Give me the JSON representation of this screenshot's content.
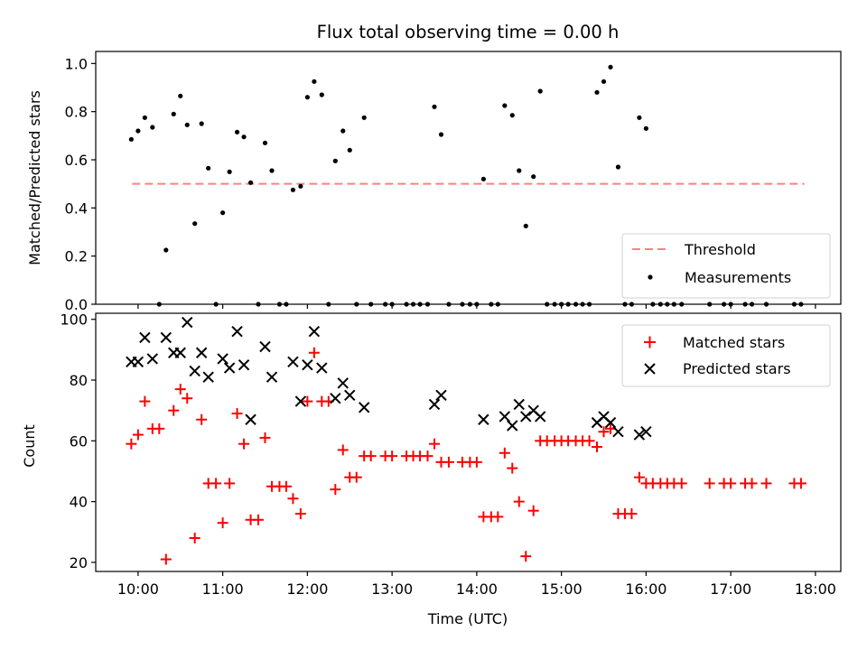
{
  "chart_data": [
    {
      "type": "scatter",
      "title": "Flux total observing time = 0.00 h",
      "ylabel": "Matched/Predicted stars",
      "xlabel": "",
      "x_unit": "hours UTC",
      "xlim": [
        9.5,
        18.3
      ],
      "ylim": [
        0,
        1.05
      ],
      "yticks": [
        0.0,
        0.2,
        0.4,
        0.6,
        0.8,
        1.0
      ],
      "ytick_labels": [
        "0.0",
        "0.2",
        "0.4",
        "0.6",
        "0.8",
        "1.0"
      ],
      "xticks": [
        10,
        11,
        12,
        13,
        14,
        15,
        16,
        17,
        18
      ],
      "xtick_labels": [],
      "grid": false,
      "legend_position": "lower-right",
      "threshold": {
        "name": "Threshold",
        "value": 0.5,
        "x_range": [
          9.93,
          17.87
        ],
        "color": "#ff8080"
      },
      "series": [
        {
          "name": "Measurements",
          "color": "#000000",
          "points": [
            [
              9.92,
              0.685
            ],
            [
              10.0,
              0.72
            ],
            [
              10.08,
              0.775
            ],
            [
              10.17,
              0.735
            ],
            [
              10.25,
              0.0
            ],
            [
              10.33,
              0.225
            ],
            [
              10.42,
              0.79
            ],
            [
              10.5,
              0.865
            ],
            [
              10.58,
              0.745
            ],
            [
              10.67,
              0.335
            ],
            [
              10.75,
              0.75
            ],
            [
              10.83,
              0.565
            ],
            [
              10.92,
              0.0
            ],
            [
              11.0,
              0.38
            ],
            [
              11.08,
              0.55
            ],
            [
              11.17,
              0.715
            ],
            [
              11.25,
              0.695
            ],
            [
              11.33,
              0.505
            ],
            [
              11.42,
              0.0
            ],
            [
              11.5,
              0.67
            ],
            [
              11.58,
              0.555
            ],
            [
              11.67,
              0.0
            ],
            [
              11.75,
              0.0
            ],
            [
              11.83,
              0.475
            ],
            [
              11.92,
              0.49
            ],
            [
              12.0,
              0.86
            ],
            [
              12.08,
              0.925
            ],
            [
              12.17,
              0.87
            ],
            [
              12.25,
              0.0
            ],
            [
              12.33,
              0.595
            ],
            [
              12.42,
              0.72
            ],
            [
              12.5,
              0.64
            ],
            [
              12.58,
              0.0
            ],
            [
              12.67,
              0.775
            ],
            [
              12.75,
              0.0
            ],
            [
              12.92,
              0.0
            ],
            [
              13.0,
              0.0
            ],
            [
              13.17,
              0.0
            ],
            [
              13.25,
              0.0
            ],
            [
              13.33,
              0.0
            ],
            [
              13.42,
              0.0
            ],
            [
              13.5,
              0.82
            ],
            [
              13.58,
              0.705
            ],
            [
              13.67,
              0.0
            ],
            [
              13.83,
              0.0
            ],
            [
              13.92,
              0.0
            ],
            [
              14.0,
              0.0
            ],
            [
              14.08,
              0.52
            ],
            [
              14.17,
              0.0
            ],
            [
              14.25,
              0.0
            ],
            [
              14.33,
              0.825
            ],
            [
              14.42,
              0.785
            ],
            [
              14.5,
              0.555
            ],
            [
              14.58,
              0.325
            ],
            [
              14.67,
              0.53
            ],
            [
              14.75,
              0.885
            ],
            [
              14.83,
              0.0
            ],
            [
              14.92,
              0.0
            ],
            [
              15.0,
              0.0
            ],
            [
              15.08,
              0.0
            ],
            [
              15.17,
              0.0
            ],
            [
              15.25,
              0.0
            ],
            [
              15.33,
              0.0
            ],
            [
              15.42,
              0.88
            ],
            [
              15.5,
              0.925
            ],
            [
              15.58,
              0.985
            ],
            [
              15.67,
              0.57
            ],
            [
              15.75,
              0.0
            ],
            [
              15.83,
              0.0
            ],
            [
              15.92,
              0.775
            ],
            [
              16.0,
              0.73
            ],
            [
              16.08,
              0.0
            ],
            [
              16.17,
              0.0
            ],
            [
              16.25,
              0.0
            ],
            [
              16.33,
              0.0
            ],
            [
              16.42,
              0.0
            ],
            [
              16.75,
              0.0
            ],
            [
              16.92,
              0.0
            ],
            [
              17.0,
              0.0
            ],
            [
              17.17,
              0.0
            ],
            [
              17.25,
              0.0
            ],
            [
              17.42,
              0.0
            ],
            [
              17.75,
              0.0
            ],
            [
              17.83,
              0.0
            ]
          ]
        }
      ]
    },
    {
      "type": "scatter",
      "title": "",
      "ylabel": "Count",
      "xlabel": "Time (UTC)",
      "x_unit": "hours UTC",
      "xlim": [
        9.5,
        18.3
      ],
      "ylim": [
        17,
        102
      ],
      "yticks": [
        20,
        40,
        60,
        80,
        100
      ],
      "ytick_labels": [
        "20",
        "40",
        "60",
        "80",
        "100"
      ],
      "xticks": [
        10,
        11,
        12,
        13,
        14,
        15,
        16,
        17,
        18
      ],
      "xtick_labels": [
        "10:00",
        "11:00",
        "12:00",
        "13:00",
        "14:00",
        "15:00",
        "16:00",
        "17:00",
        "18:00"
      ],
      "grid": false,
      "legend_position": "upper-right",
      "series": [
        {
          "name": "Matched stars",
          "marker": "plus",
          "color": "#ff0000",
          "points": [
            [
              9.92,
              59
            ],
            [
              10.0,
              62
            ],
            [
              10.08,
              73
            ],
            [
              10.17,
              64
            ],
            [
              10.25,
              64
            ],
            [
              10.33,
              21
            ],
            [
              10.42,
              70
            ],
            [
              10.5,
              77
            ],
            [
              10.58,
              74
            ],
            [
              10.67,
              28
            ],
            [
              10.75,
              67
            ],
            [
              10.83,
              46
            ],
            [
              10.92,
              46
            ],
            [
              11.0,
              33
            ],
            [
              11.08,
              46
            ],
            [
              11.17,
              69
            ],
            [
              11.25,
              59
            ],
            [
              11.33,
              34
            ],
            [
              11.42,
              34
            ],
            [
              11.5,
              61
            ],
            [
              11.58,
              45
            ],
            [
              11.67,
              45
            ],
            [
              11.75,
              45
            ],
            [
              11.83,
              41
            ],
            [
              11.92,
              36
            ],
            [
              12.0,
              73
            ],
            [
              12.08,
              89
            ],
            [
              12.17,
              73
            ],
            [
              12.25,
              73
            ],
            [
              12.33,
              44
            ],
            [
              12.42,
              57
            ],
            [
              12.5,
              48
            ],
            [
              12.58,
              48
            ],
            [
              12.67,
              55
            ],
            [
              12.75,
              55
            ],
            [
              12.92,
              55
            ],
            [
              13.0,
              55
            ],
            [
              13.17,
              55
            ],
            [
              13.25,
              55
            ],
            [
              13.33,
              55
            ],
            [
              13.42,
              55
            ],
            [
              13.5,
              59
            ],
            [
              13.58,
              53
            ],
            [
              13.67,
              53
            ],
            [
              13.83,
              53
            ],
            [
              13.92,
              53
            ],
            [
              14.0,
              53
            ],
            [
              14.08,
              35
            ],
            [
              14.17,
              35
            ],
            [
              14.25,
              35
            ],
            [
              14.33,
              56
            ],
            [
              14.42,
              51
            ],
            [
              14.5,
              40
            ],
            [
              14.58,
              22
            ],
            [
              14.67,
              37
            ],
            [
              14.75,
              60
            ],
            [
              14.83,
              60
            ],
            [
              14.92,
              60
            ],
            [
              15.0,
              60
            ],
            [
              15.08,
              60
            ],
            [
              15.17,
              60
            ],
            [
              15.25,
              60
            ],
            [
              15.33,
              60
            ],
            [
              15.42,
              58
            ],
            [
              15.5,
              63
            ],
            [
              15.58,
              64
            ],
            [
              15.67,
              36
            ],
            [
              15.75,
              36
            ],
            [
              15.83,
              36
            ],
            [
              15.92,
              48
            ],
            [
              16.0,
              46
            ],
            [
              16.08,
              46
            ],
            [
              16.17,
              46
            ],
            [
              16.25,
              46
            ],
            [
              16.33,
              46
            ],
            [
              16.42,
              46
            ],
            [
              16.75,
              46
            ],
            [
              16.92,
              46
            ],
            [
              17.0,
              46
            ],
            [
              17.17,
              46
            ],
            [
              17.25,
              46
            ],
            [
              17.42,
              46
            ],
            [
              17.75,
              46
            ],
            [
              17.83,
              46
            ]
          ]
        },
        {
          "name": "Predicted stars",
          "marker": "x",
          "color": "#000000",
          "points": [
            [
              9.92,
              86
            ],
            [
              10.0,
              86
            ],
            [
              10.08,
              94
            ],
            [
              10.17,
              87
            ],
            [
              10.33,
              94
            ],
            [
              10.42,
              89
            ],
            [
              10.5,
              89
            ],
            [
              10.58,
              99
            ],
            [
              10.67,
              83
            ],
            [
              10.75,
              89
            ],
            [
              10.83,
              81
            ],
            [
              11.0,
              87
            ],
            [
              11.08,
              84
            ],
            [
              11.17,
              96
            ],
            [
              11.25,
              85
            ],
            [
              11.33,
              67
            ],
            [
              11.5,
              91
            ],
            [
              11.58,
              81
            ],
            [
              11.83,
              86
            ],
            [
              11.92,
              73
            ],
            [
              12.0,
              85
            ],
            [
              12.08,
              96
            ],
            [
              12.17,
              84
            ],
            [
              12.33,
              74
            ],
            [
              12.42,
              79
            ],
            [
              12.5,
              75
            ],
            [
              12.67,
              71
            ],
            [
              13.5,
              72
            ],
            [
              13.58,
              75
            ],
            [
              14.08,
              67
            ],
            [
              14.33,
              68
            ],
            [
              14.42,
              65
            ],
            [
              14.5,
              72
            ],
            [
              14.58,
              68
            ],
            [
              14.67,
              70
            ],
            [
              14.75,
              68
            ],
            [
              15.42,
              66
            ],
            [
              15.5,
              68
            ],
            [
              15.58,
              66
            ],
            [
              15.67,
              63
            ],
            [
              15.92,
              62
            ],
            [
              16.0,
              63
            ]
          ]
        }
      ]
    }
  ]
}
